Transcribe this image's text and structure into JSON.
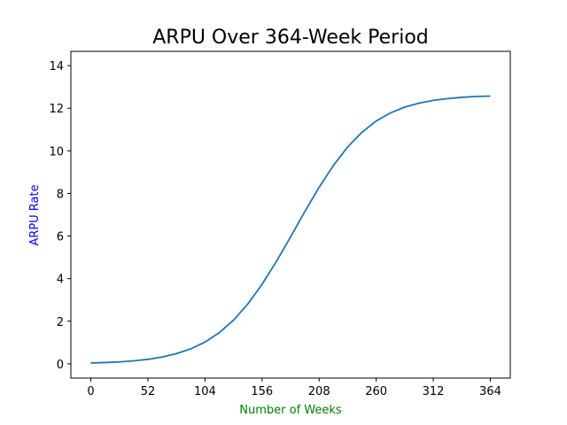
{
  "chart_data": {
    "type": "line",
    "title": "ARPU Over 364-Week Period",
    "xlabel": "Number of Weeks",
    "ylabel": "ARPU Rate",
    "xlabel_color": "#008000",
    "ylabel_color": "#0000ff",
    "line_color": "#1f77b4",
    "xlim": [
      -18.2,
      382.2
    ],
    "ylim": [
      -0.67,
      14.67
    ],
    "xticks": [
      0,
      52,
      104,
      156,
      208,
      260,
      312,
      364
    ],
    "xtick_labels": [
      "0",
      "52",
      "104",
      "156",
      "208",
      "260",
      "312",
      "364"
    ],
    "yticks": [
      0,
      2,
      4,
      6,
      8,
      10,
      12,
      14
    ],
    "ytick_labels": [
      "0",
      "2",
      "4",
      "6",
      "8",
      "10",
      "12",
      "14"
    ],
    "grid": false,
    "legend": "none",
    "series": [
      {
        "x": [
          0,
          13,
          26,
          39,
          52,
          65,
          78,
          91,
          104,
          117,
          130,
          143,
          156,
          169,
          182,
          195,
          208,
          221,
          234,
          247,
          260,
          273,
          286,
          299,
          312,
          325,
          338,
          351,
          364
        ],
        "y": [
          0.04,
          0.06,
          0.09,
          0.14,
          0.21,
          0.32,
          0.48,
          0.7,
          1.02,
          1.46,
          2.05,
          2.81,
          3.73,
          4.8,
          5.96,
          7.15,
          8.29,
          9.31,
          10.18,
          10.87,
          11.4,
          11.78,
          12.05,
          12.24,
          12.37,
          12.45,
          12.51,
          12.55,
          12.57
        ]
      }
    ]
  }
}
